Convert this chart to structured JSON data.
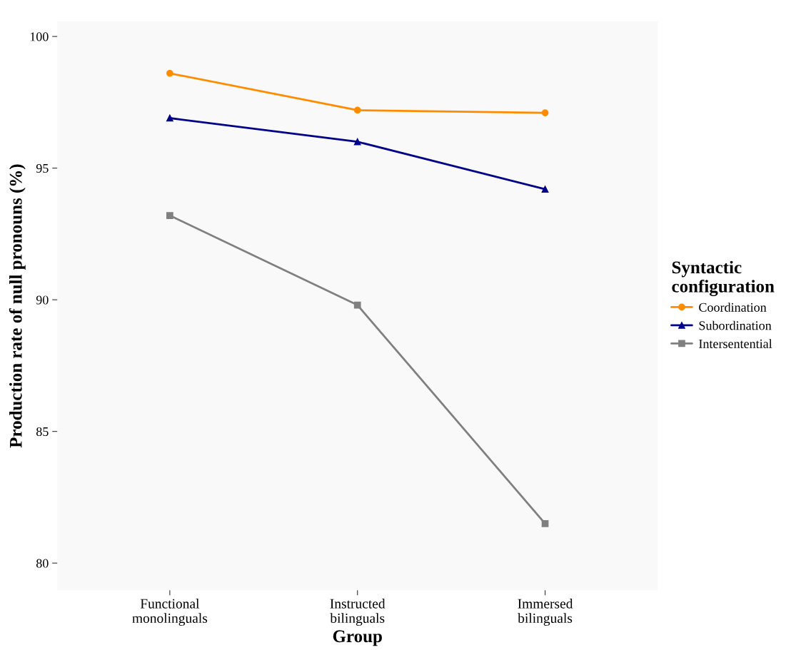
{
  "chart_data": {
    "type": "line",
    "xlabel": "Group",
    "ylabel": "Production rate of null pronouns (%)",
    "legend_title": "Syntactic\nconfiguration",
    "categories": [
      "Functional\nmonolinguals",
      "Instructed\nbilinguals",
      "Immersed\nbilinguals"
    ],
    "series": [
      {
        "name": "Coordination",
        "color": "#ff8c00",
        "marker": "circle",
        "values": [
          98.6,
          97.2,
          97.1
        ]
      },
      {
        "name": "Subordination",
        "color": "#00008b",
        "marker": "triangle",
        "values": [
          96.9,
          96.0,
          94.2
        ]
      },
      {
        "name": "Intersentential",
        "color": "#808080",
        "marker": "square",
        "values": [
          93.2,
          89.8,
          81.5
        ]
      }
    ],
    "ylim": [
      78.97,
      100.57
    ],
    "yticks": [
      80,
      85,
      90,
      95,
      100
    ],
    "grid": false,
    "legend": "right"
  }
}
